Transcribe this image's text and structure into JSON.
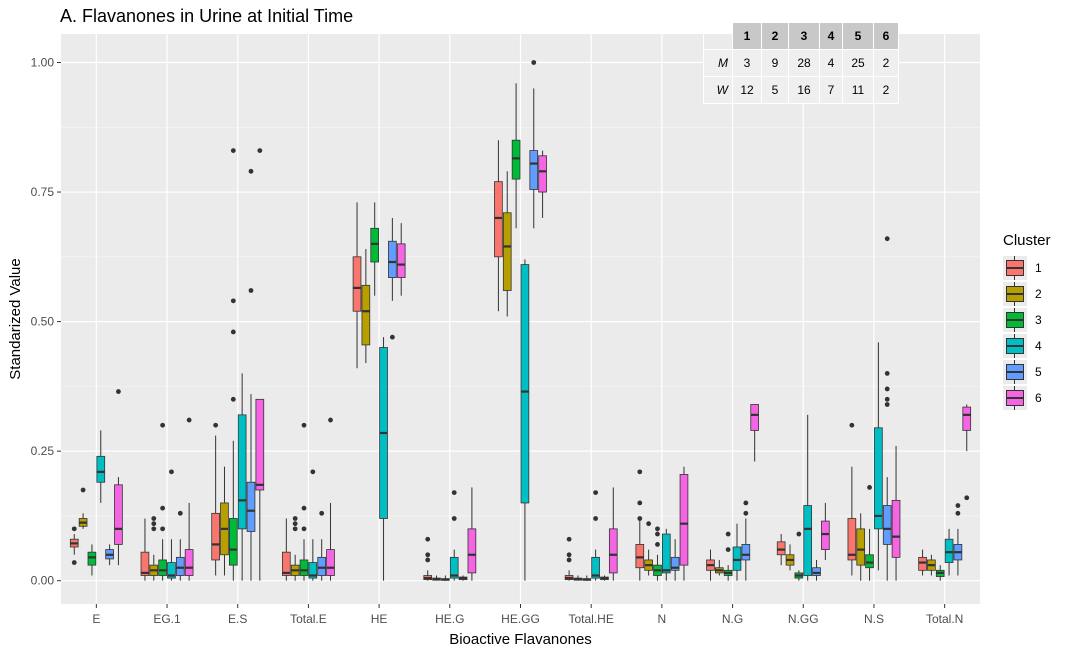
{
  "chart_data": {
    "type": "boxplot",
    "title": "A. Flavanones in Urine at Initial Time",
    "xlabel": "Bioactive Flavanones",
    "ylabel": "Standarized Value",
    "ylim": [
      -0.045,
      1.055
    ],
    "yticks": [
      0.0,
      0.25,
      0.5,
      0.75,
      1.0
    ],
    "ytick_labels": [
      "0.00",
      "0.25",
      "0.50",
      "0.75",
      "1.00"
    ],
    "categories": [
      "E",
      "EG.1",
      "E.S",
      "Total.E",
      "HE",
      "HE.G",
      "HE.GG",
      "Total.HE",
      "N",
      "N.G",
      "N.GG",
      "N.S",
      "Total.N"
    ],
    "legend": {
      "title": "Cluster",
      "position": "right",
      "items": [
        {
          "label": "1",
          "color": "#F8766D"
        },
        {
          "label": "2",
          "color": "#B79F00"
        },
        {
          "label": "3",
          "color": "#00BA38"
        },
        {
          "label": "4",
          "color": "#00BFC4"
        },
        {
          "label": "5",
          "color": "#619CFF"
        },
        {
          "label": "6",
          "color": "#F564E3"
        }
      ]
    },
    "grid": true,
    "series": [
      {
        "name": "1",
        "boxes": [
          [
            0.05,
            0.065,
            0.072,
            0.08,
            0.09
          ],
          [
            0.0,
            0.01,
            0.015,
            0.055,
            0.12
          ],
          [
            0.01,
            0.04,
            0.07,
            0.13,
            0.28
          ],
          [
            0.0,
            0.01,
            0.015,
            0.055,
            0.12
          ],
          [
            0.41,
            0.52,
            0.565,
            0.625,
            0.73
          ],
          [
            0.0,
            0.002,
            0.005,
            0.01,
            0.02
          ],
          [
            0.52,
            0.625,
            0.7,
            0.77,
            0.85
          ],
          [
            0.0,
            0.002,
            0.005,
            0.01,
            0.02
          ],
          [
            0.0,
            0.025,
            0.045,
            0.07,
            0.12
          ],
          [
            0.0,
            0.02,
            0.03,
            0.04,
            0.06
          ],
          [
            0.03,
            0.05,
            0.06,
            0.075,
            0.09
          ],
          [
            0.01,
            0.04,
            0.05,
            0.12,
            0.22
          ],
          [
            0.01,
            0.02,
            0.035,
            0.045,
            0.06
          ]
        ],
        "outliers": [
          [
            0.035,
            0.1
          ],
          [],
          [
            0.3
          ],
          [],
          [],
          [
            0.08,
            0.05,
            0.04
          ],
          [],
          [
            0.08,
            0.05,
            0.04
          ],
          [
            0.21,
            0.15,
            0.12
          ],
          [],
          [],
          [
            0.3
          ],
          []
        ]
      },
      {
        "name": "2",
        "boxes": [
          [
            0.1,
            0.105,
            0.112,
            0.12,
            0.13
          ],
          [
            0.0,
            0.01,
            0.02,
            0.03,
            0.05
          ],
          [
            0.01,
            0.05,
            0.1,
            0.15,
            0.22
          ],
          [
            0.0,
            0.01,
            0.02,
            0.03,
            0.05
          ],
          [
            0.42,
            0.455,
            0.52,
            0.57,
            0.64
          ],
          [
            0.0,
            0.001,
            0.003,
            0.005,
            0.01
          ],
          [
            0.51,
            0.56,
            0.645,
            0.71,
            0.79
          ],
          [
            0.0,
            0.001,
            0.003,
            0.005,
            0.01
          ],
          [
            0.01,
            0.02,
            0.03,
            0.04,
            0.06
          ],
          [
            0.01,
            0.015,
            0.02,
            0.025,
            0.04
          ],
          [
            0.02,
            0.03,
            0.04,
            0.05,
            0.07
          ],
          [
            0.0,
            0.03,
            0.06,
            0.1,
            0.13
          ],
          [
            0.01,
            0.02,
            0.03,
            0.04,
            0.05
          ]
        ],
        "outliers": [
          [
            0.175
          ],
          [
            0.12,
            0.11,
            0.1
          ],
          [],
          [
            0.12,
            0.11,
            0.1
          ],
          [],
          [],
          [],
          [],
          [
            0.11
          ],
          [],
          [],
          [],
          []
        ]
      },
      {
        "name": "3",
        "boxes": [
          [
            0.01,
            0.03,
            0.045,
            0.055,
            0.07
          ],
          [
            0.0,
            0.01,
            0.02,
            0.04,
            0.08
          ],
          [
            0.0,
            0.03,
            0.06,
            0.12,
            0.27
          ],
          [
            0.0,
            0.01,
            0.02,
            0.04,
            0.08
          ],
          [
            0.55,
            0.615,
            0.65,
            0.68,
            0.73
          ],
          [
            0.0,
            0.001,
            0.002,
            0.004,
            0.01
          ],
          [
            0.68,
            0.775,
            0.815,
            0.85,
            0.96
          ],
          [
            0.0,
            0.001,
            0.002,
            0.004,
            0.01
          ],
          [
            0.0,
            0.01,
            0.02,
            0.03,
            0.05
          ],
          [
            0.0,
            0.01,
            0.015,
            0.02,
            0.03
          ],
          [
            0.0,
            0.005,
            0.01,
            0.015,
            0.02
          ],
          [
            0.0,
            0.025,
            0.035,
            0.05,
            0.1
          ],
          [
            0.0,
            0.008,
            0.015,
            0.02,
            0.03
          ]
        ],
        "outliers": [
          [],
          [
            0.3,
            0.14,
            0.1
          ],
          [
            0.83,
            0.54,
            0.48,
            0.35
          ],
          [
            0.3,
            0.14,
            0.1
          ],
          [],
          [],
          [],
          [],
          [
            0.1,
            0.09,
            0.07
          ],
          [
            0.09,
            0.06
          ],
          [
            0.09
          ],
          [
            0.18
          ],
          []
        ]
      },
      {
        "name": "4",
        "boxes": [
          [
            0.15,
            0.19,
            0.21,
            0.24,
            0.29
          ],
          [
            0.0,
            0.005,
            0.01,
            0.035,
            0.08
          ],
          [
            0.0,
            0.1,
            0.155,
            0.32,
            0.4
          ],
          [
            0.0,
            0.005,
            0.01,
            0.035,
            0.08
          ],
          [
            0.0,
            0.12,
            0.285,
            0.45,
            0.47
          ],
          [
            0.0,
            0.005,
            0.01,
            0.045,
            0.06
          ],
          [
            0.0,
            0.15,
            0.365,
            0.61,
            0.62
          ],
          [
            0.0,
            0.005,
            0.01,
            0.045,
            0.06
          ],
          [
            0.0,
            0.015,
            0.02,
            0.09,
            0.1
          ],
          [
            0.0,
            0.02,
            0.04,
            0.065,
            0.11
          ],
          [
            0.0,
            0.01,
            0.1,
            0.145,
            0.32
          ],
          [
            0.02,
            0.1,
            0.125,
            0.295,
            0.46
          ],
          [
            0.01,
            0.035,
            0.055,
            0.08,
            0.1
          ]
        ],
        "outliers": [
          [],
          [
            0.21
          ],
          [],
          [
            0.21
          ],
          [],
          [
            0.17,
            0.12
          ],
          [],
          [
            0.17,
            0.12
          ],
          [],
          [],
          [],
          [],
          []
        ]
      },
      {
        "name": "5",
        "boxes": [
          [
            0.03,
            0.042,
            0.05,
            0.06,
            0.07
          ],
          [
            0.0,
            0.01,
            0.025,
            0.045,
            0.08
          ],
          [
            0.0,
            0.095,
            0.135,
            0.19,
            0.36
          ],
          [
            0.0,
            0.01,
            0.025,
            0.045,
            0.08
          ],
          [
            0.54,
            0.585,
            0.615,
            0.655,
            0.7
          ],
          [
            0.0,
            0.002,
            0.005,
            0.007,
            0.01
          ],
          [
            0.68,
            0.755,
            0.805,
            0.83,
            0.95
          ],
          [
            0.0,
            0.002,
            0.005,
            0.007,
            0.01
          ],
          [
            0.0,
            0.02,
            0.025,
            0.045,
            0.08
          ],
          [
            0.0,
            0.04,
            0.05,
            0.07,
            0.12
          ],
          [
            0.0,
            0.01,
            0.015,
            0.025,
            0.04
          ],
          [
            0.0,
            0.07,
            0.1,
            0.145,
            0.2
          ],
          [
            0.01,
            0.04,
            0.055,
            0.07,
            0.1
          ]
        ],
        "outliers": [
          [],
          [
            0.13
          ],
          [
            0.79,
            0.56
          ],
          [
            0.13
          ],
          [
            0.47
          ],
          [],
          [
            1.0
          ],
          [],
          [],
          [
            0.15,
            0.13
          ],
          [],
          [
            0.66,
            0.4,
            0.37,
            0.35,
            0.34
          ],
          [
            0.145,
            0.13
          ]
        ]
      },
      {
        "name": "6",
        "boxes": [
          [
            0.03,
            0.07,
            0.1,
            0.185,
            0.2
          ],
          [
            0.0,
            0.01,
            0.025,
            0.06,
            0.15
          ],
          [
            0.0,
            0.175,
            0.185,
            0.35,
            0.35
          ],
          [
            0.0,
            0.01,
            0.025,
            0.06,
            0.15
          ],
          [
            0.55,
            0.585,
            0.61,
            0.65,
            0.69
          ],
          [
            0.0,
            0.015,
            0.05,
            0.1,
            0.18
          ],
          [
            0.7,
            0.75,
            0.79,
            0.82,
            0.83
          ],
          [
            0.0,
            0.015,
            0.05,
            0.1,
            0.18
          ],
          [
            0.0,
            0.03,
            0.11,
            0.205,
            0.22
          ],
          [
            0.23,
            0.29,
            0.32,
            0.34,
            0.34
          ],
          [
            0.04,
            0.06,
            0.09,
            0.115,
            0.15
          ],
          [
            0.0,
            0.045,
            0.085,
            0.155,
            0.26
          ],
          [
            0.25,
            0.29,
            0.32,
            0.335,
            0.34
          ]
        ],
        "outliers": [
          [
            0.365
          ],
          [
            0.31
          ],
          [
            0.83
          ],
          [
            0.31
          ],
          [],
          [],
          [],
          [],
          [],
          [],
          [],
          [],
          [
            0.16
          ]
        ]
      }
    ]
  },
  "inset_table": {
    "columns": [
      "1",
      "2",
      "3",
      "4",
      "5",
      "6"
    ],
    "rows": [
      {
        "label": "M",
        "values": [
          "3",
          "9",
          "28",
          "4",
          "25",
          "2"
        ]
      },
      {
        "label": "W",
        "values": [
          "12",
          "5",
          "16",
          "7",
          "11",
          "2"
        ]
      }
    ]
  }
}
